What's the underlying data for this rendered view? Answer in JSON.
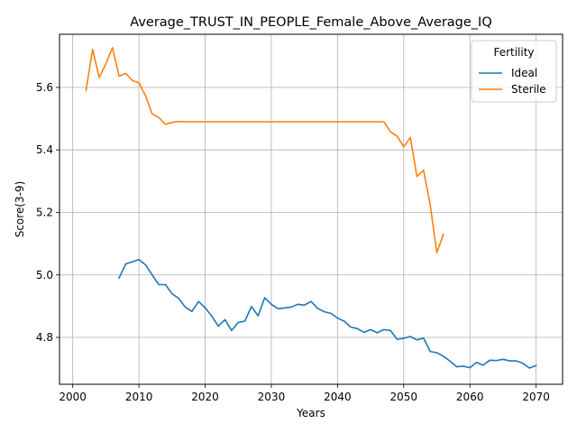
{
  "chart_data": {
    "type": "line",
    "title": "Average_TRUST_IN_PEOPLE_Female_Above_Average_IQ",
    "xlabel": "Years",
    "ylabel": "Score(3-9)",
    "xlim": [
      1998,
      2074
    ],
    "ylim": [
      4.65,
      5.77
    ],
    "xticks": [
      2000,
      2010,
      2020,
      2030,
      2040,
      2050,
      2060,
      2070
    ],
    "yticks": [
      4.8,
      5.0,
      5.2,
      5.4,
      5.6
    ],
    "grid": true,
    "legend": {
      "title": "Fertility",
      "placement": "top-right"
    },
    "series": [
      {
        "name": "Ideal",
        "color": "#1f77b4",
        "x": [
          2007,
          2008,
          2009,
          2010,
          2011,
          2012,
          2013,
          2014,
          2015,
          2016,
          2017,
          2018,
          2019,
          2020,
          2021,
          2022,
          2023,
          2024,
          2025,
          2026,
          2027,
          2028,
          2029,
          2030,
          2031,
          2032,
          2033,
          2034,
          2035,
          2036,
          2037,
          2038,
          2039,
          2040,
          2041,
          2042,
          2043,
          2044,
          2045,
          2046,
          2047,
          2048,
          2049,
          2050,
          2051,
          2052,
          2053,
          2054,
          2055,
          2056,
          2057,
          2058,
          2059,
          2060,
          2061,
          2062,
          2063,
          2064,
          2065,
          2066,
          2067,
          2068,
          2069,
          2070
        ],
        "y": [
          4.99,
          5.035,
          5.042,
          5.049,
          5.032,
          5.0,
          4.969,
          4.969,
          4.94,
          4.925,
          4.897,
          4.883,
          4.915,
          4.895,
          4.868,
          4.836,
          4.857,
          4.822,
          4.848,
          4.852,
          4.899,
          4.869,
          4.927,
          4.906,
          4.892,
          4.894,
          4.897,
          4.906,
          4.903,
          4.915,
          4.893,
          4.882,
          4.877,
          4.862,
          4.852,
          4.833,
          4.828,
          4.816,
          4.825,
          4.815,
          4.825,
          4.822,
          4.794,
          4.797,
          4.803,
          4.792,
          4.798,
          4.755,
          4.751,
          4.74,
          4.724,
          4.706,
          4.708,
          4.703,
          4.72,
          4.711,
          4.727,
          4.726,
          4.73,
          4.725,
          4.725,
          4.717,
          4.702,
          4.71
        ]
      },
      {
        "name": "Sterile",
        "color": "#ff7f0e",
        "x": [
          2002,
          2003,
          2004,
          2005,
          2006,
          2007,
          2008,
          2009,
          2010,
          2011,
          2012,
          2013,
          2014,
          2015,
          2016,
          2017,
          2018,
          2019,
          2020,
          2021,
          2022,
          2023,
          2024,
          2025,
          2026,
          2027,
          2028,
          2029,
          2030,
          2031,
          2032,
          2033,
          2034,
          2035,
          2036,
          2037,
          2038,
          2039,
          2040,
          2041,
          2042,
          2043,
          2044,
          2045,
          2046,
          2047,
          2048,
          2049,
          2050,
          2051,
          2052,
          2053,
          2054,
          2055,
          2056
        ],
        "y": [
          5.59,
          5.722,
          5.632,
          5.675,
          5.727,
          5.636,
          5.645,
          5.622,
          5.615,
          5.573,
          5.515,
          5.504,
          5.482,
          5.488,
          5.491,
          5.49,
          5.49,
          5.49,
          5.49,
          5.49,
          5.49,
          5.49,
          5.49,
          5.49,
          5.49,
          5.49,
          5.49,
          5.49,
          5.49,
          5.49,
          5.49,
          5.49,
          5.49,
          5.49,
          5.49,
          5.49,
          5.49,
          5.49,
          5.49,
          5.49,
          5.49,
          5.49,
          5.49,
          5.49,
          5.49,
          5.49,
          5.458,
          5.444,
          5.41,
          5.44,
          5.315,
          5.335,
          5.225,
          5.071,
          5.13
        ]
      }
    ]
  }
}
